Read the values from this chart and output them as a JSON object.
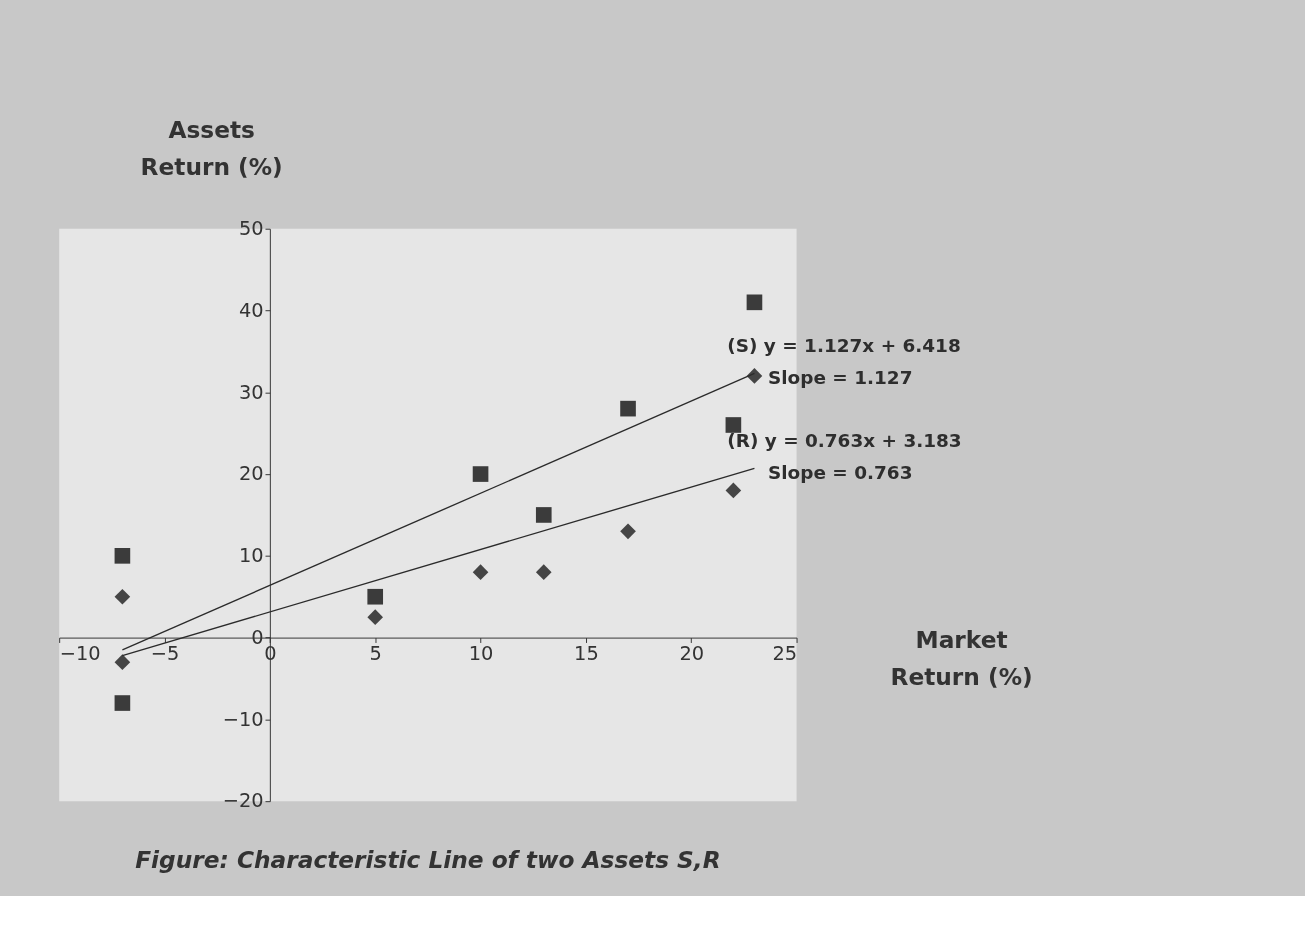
{
  "chart_data": {
    "type": "scatter",
    "xlabel": "Market Return (%)",
    "ylabel": "Assets Return (%)",
    "xlim": [
      -10,
      25
    ],
    "xticks": [
      -10,
      -5,
      0,
      5,
      10,
      15,
      20,
      25
    ],
    "ylim": [
      -20,
      50
    ],
    "yticks": [
      -20,
      -10,
      0,
      10,
      20,
      30,
      40,
      50
    ],
    "grid": false,
    "series": [
      {
        "marker": "square",
        "color": "#3b3b3b",
        "x": [
          -7,
          -7,
          5,
          10,
          13,
          17,
          22,
          23
        ],
        "values": [
          10,
          -8,
          5,
          20,
          15,
          28,
          26,
          41
        ]
      },
      {
        "marker": "diamond",
        "color": "#454545",
        "x": [
          -7,
          -7,
          5,
          10,
          13,
          17,
          22,
          23
        ],
        "values": [
          5,
          -3,
          2.5,
          8,
          8,
          13,
          18,
          32
        ]
      },
      {
        "type": "line",
        "marker": "none",
        "color": "#2b2b2b",
        "x": [
          -7,
          23
        ],
        "values": [
          -1.5,
          32.3
        ]
      },
      {
        "type": "line",
        "marker": "none",
        "color": "#2b2b2b",
        "x": [
          -7,
          23
        ],
        "values": [
          -2.2,
          20.7
        ]
      }
    ],
    "annotations": [
      "(S) y = 1.127x + 6.418",
      "Slope = 1.127",
      "(R) y = 0.763x + 3.183",
      "Slope = 0.763",
      "Figure: Characteristic Line of two Assets S,R"
    ]
  }
}
